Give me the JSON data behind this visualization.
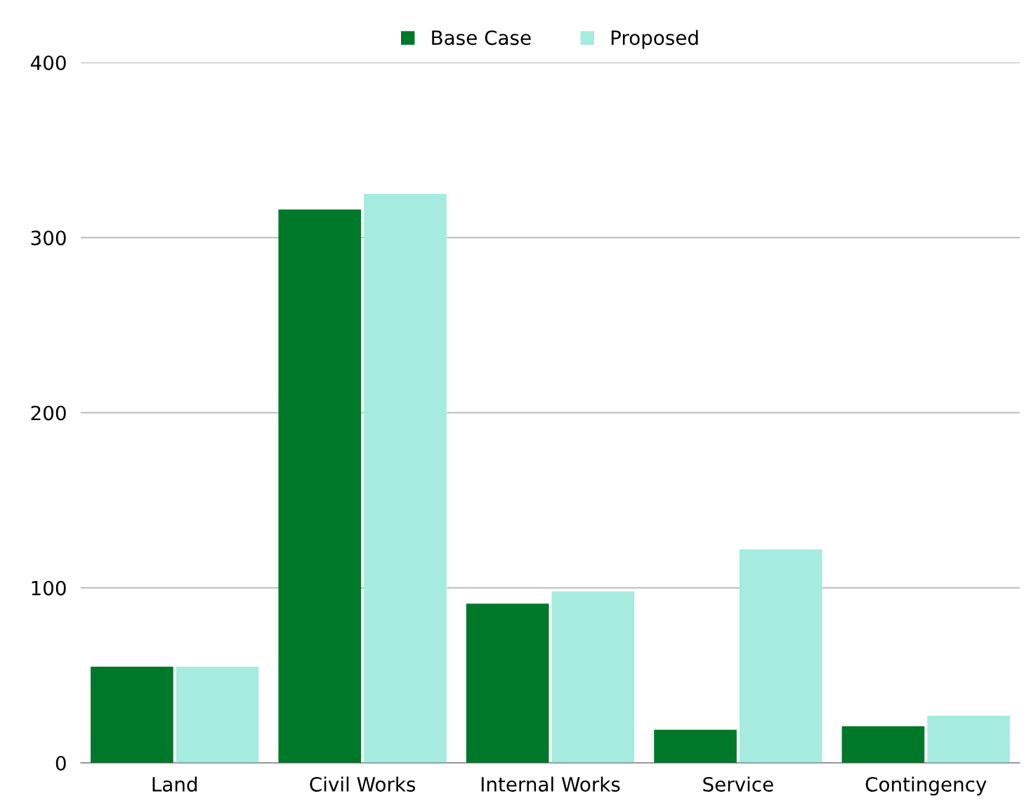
{
  "chart_data": {
    "type": "bar",
    "categories": [
      "Land",
      "Civil Works",
      "Internal Works",
      "Service",
      "Contingency"
    ],
    "series": [
      {
        "name": "Base Case",
        "color": "#00782a",
        "values": [
          55,
          316,
          91,
          19,
          21
        ]
      },
      {
        "name": "Proposed",
        "color": "#a6ebe0",
        "values": [
          55,
          325,
          98,
          122,
          27
        ]
      }
    ],
    "ylim": [
      0,
      400
    ],
    "yticks": [
      0,
      100,
      200,
      300,
      400
    ],
    "grid": "y",
    "legend": "top"
  }
}
